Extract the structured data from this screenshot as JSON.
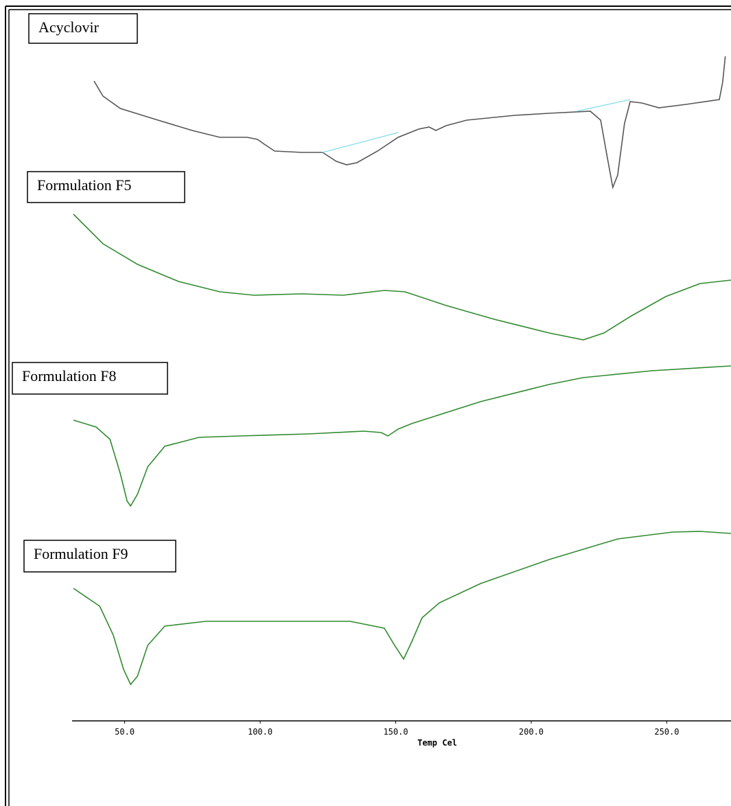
{
  "chart_data": {
    "type": "line",
    "x_label": "Temp Cel",
    "xlim": [
      30.6,
      273.7
    ],
    "ylim": [
      0,
      970
    ],
    "xticks": [
      {
        "value": 50,
        "label": "50.0"
      },
      {
        "value": 100,
        "label": "100.0"
      },
      {
        "value": 150,
        "label": "150.0"
      },
      {
        "value": 200,
        "label": "200.0"
      },
      {
        "value": 250,
        "label": "250.0"
      }
    ],
    "series": [
      {
        "name": "Acyclovir",
        "color": "#555555",
        "x": [
          38.7,
          42.0,
          48.4,
          62.3,
          74.9,
          85.1,
          95.2,
          99.0,
          101.5,
          105.3,
          115.4,
          123.0,
          128.1,
          131.9,
          135.7,
          143.3,
          150.9,
          158.5,
          162.3,
          164.8,
          168.6,
          176.2,
          193.9,
          206.6,
          221.8,
          225.6,
          228.1,
          230.1,
          231.9,
          234.4,
          236.5,
          240.8,
          247.1,
          257.2,
          269.4,
          270.6,
          271.6
        ],
        "values": [
          932,
          910,
          892,
          875,
          860,
          850,
          850,
          847,
          840,
          830,
          828,
          828,
          815,
          810,
          813,
          830,
          850,
          862,
          865,
          860,
          867,
          875,
          882,
          885,
          888,
          875,
          820,
          777,
          795,
          870,
          902,
          900,
          893,
          898,
          905,
          930,
          968
        ]
      },
      {
        "color": "#7fdcea",
        "x": [
          123.0,
          150.9
        ],
        "values": [
          828,
          857
        ]
      },
      {
        "color": "#7fdcea",
        "x": [
          216.7,
          236.5
        ],
        "values": [
          888,
          905
        ]
      },
      {
        "name": "Formulation F5",
        "color": "#2f8a2f",
        "x": [
          31.1,
          42.0,
          54.7,
          69.9,
          85.1,
          97.7,
          115.4,
          130.6,
          145.8,
          153.4,
          168.6,
          186.3,
          206.6,
          219.2,
          226.8,
          237.0,
          249.6,
          262.3,
          273.7
        ],
        "values": [
          738,
          695,
          665,
          640,
          625,
          620,
          622,
          620,
          627,
          625,
          605,
          585,
          565,
          555,
          565,
          590,
          618,
          637,
          642
        ]
      },
      {
        "name": "Formulation F8",
        "color": "#2f8a2f",
        "x": [
          31.1,
          39.5,
          44.6,
          48.4,
          50.9,
          52.2,
          54.7,
          58.5,
          64.8,
          77.5,
          92.7,
          118.0,
          138.2,
          144.6,
          147.1,
          150.9,
          155.9,
          181.3,
          206.6,
          219.2,
          244.6,
          273.7
        ],
        "values": [
          438,
          428,
          410,
          360,
          320,
          313,
          330,
          370,
          400,
          413,
          415,
          418,
          422,
          420,
          415,
          425,
          433,
          465,
          490,
          500,
          510,
          517
        ]
      },
      {
        "name": "Formulation F9",
        "color": "#2f8a2f",
        "x": [
          31.1,
          40.8,
          45.8,
          49.6,
          52.2,
          54.7,
          58.5,
          64.8,
          79.9,
          105.3,
          133.2,
          142.0,
          145.8,
          149.6,
          152.9,
          155.9,
          159.7,
          166.1,
          181.3,
          206.6,
          231.9,
          252.2,
          262.3,
          273.7
        ],
        "values": [
          193,
          167,
          125,
          75,
          53,
          65,
          110,
          138,
          145,
          145,
          145,
          138,
          135,
          110,
          90,
          115,
          150,
          172,
          200,
          235,
          265,
          275,
          276,
          273
        ]
      }
    ]
  }
}
